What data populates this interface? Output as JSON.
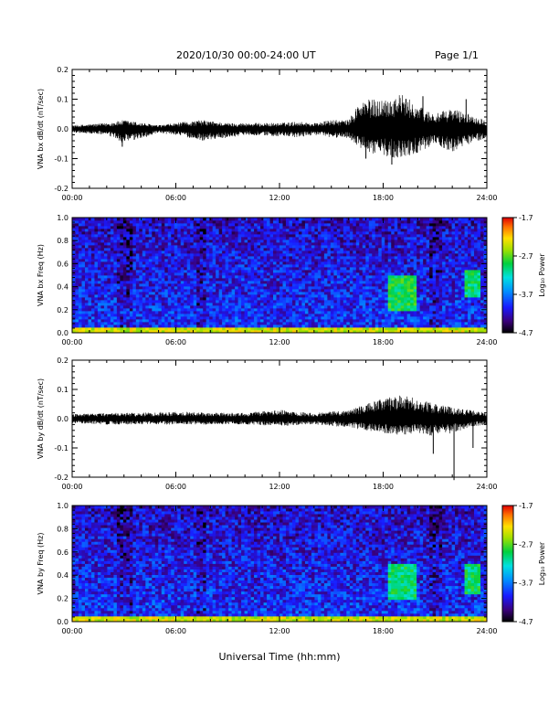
{
  "header": {
    "title": "2020/10/30  00:00-24:00 UT",
    "page": "Page 1/1"
  },
  "x_axis_label": "Universal Time (hh:mm)",
  "chart_data": [
    {
      "type": "line",
      "ylabel": "VNA bx dB/dt (nT/sec)",
      "ylim": [
        -0.2,
        0.2
      ],
      "yticks": [
        "-0.2",
        "-0.1",
        "0.0",
        "0.1",
        "0.2"
      ],
      "xticks": [
        "00:00",
        "06:00",
        "12:00",
        "18:00",
        "24:00"
      ],
      "xlim_hours": [
        0,
        24
      ],
      "envelope": {
        "hours": [
          0,
          2,
          3,
          5,
          6,
          7.5,
          9,
          10,
          12,
          13,
          14,
          15,
          16,
          16.5,
          17,
          18,
          19,
          20,
          21,
          22,
          23,
          24
        ],
        "upper": [
          0.012,
          0.02,
          0.03,
          0.012,
          0.02,
          0.03,
          0.02,
          0.02,
          0.02,
          0.025,
          0.02,
          0.03,
          0.03,
          0.08,
          0.1,
          0.1,
          0.12,
          0.08,
          0.05,
          0.07,
          0.05,
          0.03
        ],
        "lower": [
          -0.012,
          -0.02,
          -0.05,
          -0.015,
          -0.02,
          -0.04,
          -0.03,
          -0.02,
          -0.025,
          -0.03,
          -0.02,
          -0.03,
          -0.03,
          -0.06,
          -0.08,
          -0.09,
          -0.1,
          -0.08,
          -0.05,
          -0.08,
          -0.05,
          -0.03
        ]
      },
      "spikes": [
        {
          "hour": 2.9,
          "value": -0.06
        },
        {
          "hour": 17.0,
          "value": -0.1
        },
        {
          "hour": 18.5,
          "value": -0.12
        },
        {
          "hour": 20.3,
          "value": 0.11
        },
        {
          "hour": 22.8,
          "value": 0.1
        }
      ]
    },
    {
      "type": "heatmap",
      "ylabel": "VNA bx Freq (Hz)",
      "ylim": [
        0.0,
        1.0
      ],
      "yticks": [
        "0.0",
        "0.2",
        "0.4",
        "0.6",
        "0.8",
        "1.0"
      ],
      "xticks": [
        "00:00",
        "06:00",
        "12:00",
        "18:00",
        "24:00"
      ],
      "xlim_hours": [
        0,
        24
      ],
      "colorbar": {
        "label": "Log₁₀ Power",
        "ticks": [
          "-4.7",
          "-3.7",
          "-2.7",
          "-1.7"
        ],
        "range": [
          -4.7,
          -1.7
        ]
      },
      "features": [
        {
          "hours": [
            18.3,
            20.0
          ],
          "freq": [
            0.18,
            0.5
          ],
          "level": -2.9
        },
        {
          "hours": [
            22.8,
            23.6
          ],
          "freq": [
            0.3,
            0.55
          ],
          "level": -3.0
        },
        {
          "hours": [
            0,
            24
          ],
          "freq": [
            0.0,
            0.04
          ],
          "level": -2.4
        }
      ]
    },
    {
      "type": "line",
      "ylabel": "VNA by dB/dt (nT/sec)",
      "ylim": [
        -0.2,
        0.2
      ],
      "yticks": [
        "-0.2",
        "-0.1",
        "0.0",
        "0.1",
        "0.2"
      ],
      "xticks": [
        "00:00",
        "06:00",
        "12:00",
        "18:00",
        "24:00"
      ],
      "xlim_hours": [
        0,
        24
      ],
      "envelope": {
        "hours": [
          0,
          2,
          4,
          6,
          8,
          10,
          12,
          14,
          15,
          16,
          17,
          18,
          19,
          20,
          21,
          22,
          23,
          24
        ],
        "upper": [
          0.015,
          0.02,
          0.02,
          0.025,
          0.02,
          0.02,
          0.03,
          0.02,
          0.025,
          0.03,
          0.05,
          0.07,
          0.08,
          0.07,
          0.05,
          0.04,
          0.03,
          0.02
        ],
        "lower": [
          -0.015,
          -0.02,
          -0.02,
          -0.02,
          -0.02,
          -0.02,
          -0.025,
          -0.02,
          -0.025,
          -0.03,
          -0.04,
          -0.05,
          -0.06,
          -0.05,
          -0.06,
          -0.05,
          -0.03,
          -0.02
        ]
      },
      "spikes": [
        {
          "hour": 20.9,
          "value": -0.12
        },
        {
          "hour": 22.1,
          "value": -0.21
        },
        {
          "hour": 23.2,
          "value": -0.1
        }
      ]
    },
    {
      "type": "heatmap",
      "ylabel": "VNA by Freq (Hz)",
      "ylim": [
        0.0,
        1.0
      ],
      "yticks": [
        "0.0",
        "0.2",
        "0.4",
        "0.6",
        "0.8",
        "1.0"
      ],
      "xticks": [
        "00:00",
        "06:00",
        "12:00",
        "18:00",
        "24:00"
      ],
      "xlim_hours": [
        0,
        24
      ],
      "colorbar": {
        "label": "Log₁₀ Power",
        "ticks": [
          "-4.7",
          "-3.7",
          "-2.7",
          "-1.7"
        ],
        "range": [
          -4.7,
          -1.7
        ]
      },
      "features": [
        {
          "hours": [
            18.3,
            20.0
          ],
          "freq": [
            0.18,
            0.5
          ],
          "level": -3.0
        },
        {
          "hours": [
            22.8,
            23.6
          ],
          "freq": [
            0.25,
            0.5
          ],
          "level": -3.0
        },
        {
          "hours": [
            0,
            24
          ],
          "freq": [
            0.0,
            0.04
          ],
          "level": -2.4
        }
      ]
    }
  ]
}
